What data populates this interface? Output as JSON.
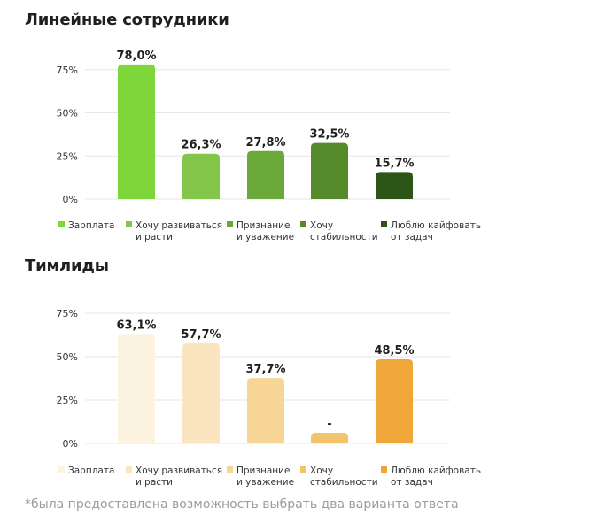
{
  "footnote": "*была предоставлена возможность выбрать два варианта ответа",
  "chart_data": [
    {
      "type": "bar",
      "title": "Линейные сотрудники",
      "categories": [
        "Зарплата",
        "Хочу развиваться и расти",
        "Признание и уважение",
        "Хочу стабильности",
        "Люблю кайфовать от задач"
      ],
      "legend_lines": [
        [
          "Зарплата"
        ],
        [
          "Хочу развиваться",
          "и расти"
        ],
        [
          "Признание",
          "и уважение"
        ],
        [
          "Хочу",
          "стабильности"
        ],
        [
          "Люблю кайфовать",
          "от задач"
        ]
      ],
      "values": [
        78.0,
        26.3,
        27.8,
        32.5,
        15.7
      ],
      "value_labels": [
        "78,0%",
        "26,3%",
        "27,8%",
        "32,5%",
        "15,7%"
      ],
      "colors": [
        "#7ed63b",
        "#83c64a",
        "#6aa83a",
        "#558a2b",
        "#2e5518"
      ],
      "yticks": [
        "0%",
        "25%",
        "50%",
        "75%"
      ],
      "ylim": [
        0,
        80
      ],
      "grid": true,
      "legend": "bottom"
    },
    {
      "type": "bar",
      "title": "Тимлиды",
      "categories": [
        "Зарплата",
        "Хочу развиваться и расти",
        "Признание и уважение",
        "Хочу стабильности",
        "Люблю кайфовать от задач"
      ],
      "legend_lines": [
        [
          "Зарплата"
        ],
        [
          "Хочу развиваться",
          "и расти"
        ],
        [
          "Признание",
          "и уважение"
        ],
        [
          "Хочу",
          "стабильности"
        ],
        [
          "Люблю кайфовать",
          "от задач"
        ]
      ],
      "values": [
        63.1,
        57.7,
        37.7,
        0,
        48.5
      ],
      "value_labels": [
        "63,1%",
        "57,7%",
        "37,7%",
        "-",
        "48,5%"
      ],
      "colors": [
        "#fdf3e1",
        "#fbe5c0",
        "#f7d596",
        "#f3c46a",
        "#f0a73a"
      ],
      "yticks": [
        "0%",
        "25%",
        "50%",
        "75%"
      ],
      "ylim": [
        0,
        80
      ],
      "grid": true,
      "legend": "bottom"
    }
  ]
}
